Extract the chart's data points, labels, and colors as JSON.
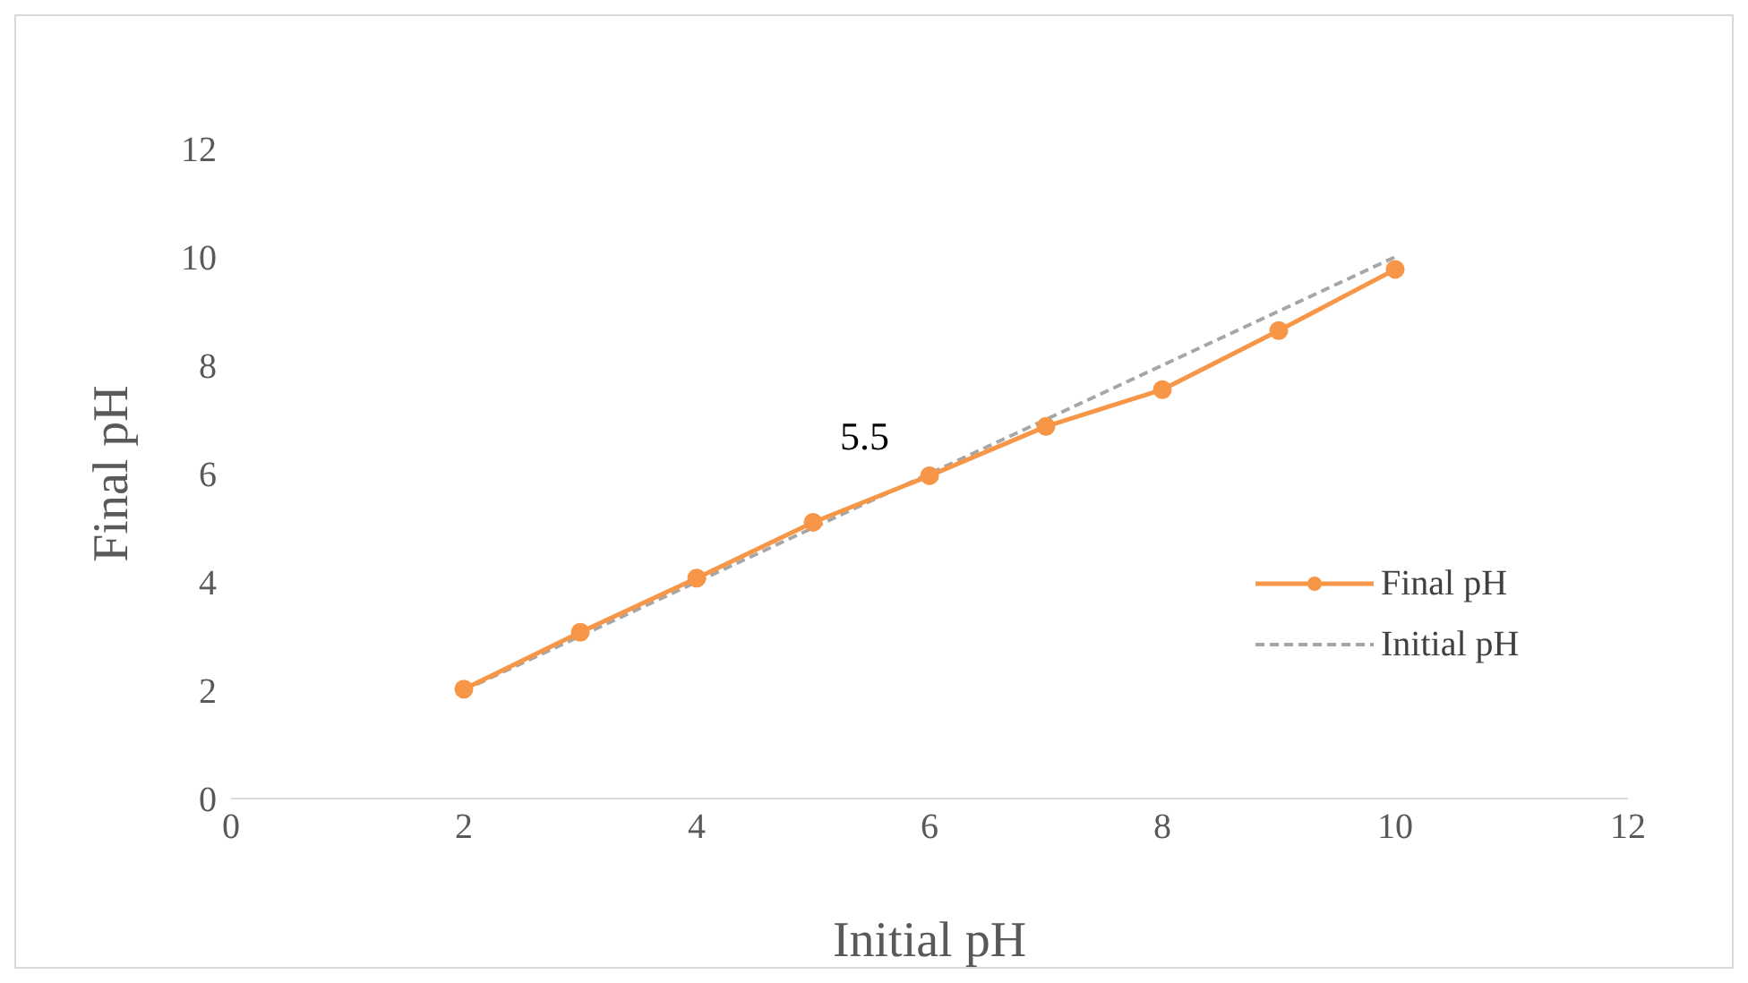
{
  "chart_data": {
    "type": "line",
    "xlabel": "Initial pH",
    "ylabel": "Final pH",
    "x": [
      2,
      3,
      4,
      5,
      6,
      7,
      8,
      9,
      10
    ],
    "xlim": [
      0,
      12
    ],
    "xticks": [
      0,
      2,
      4,
      6,
      8,
      10,
      12
    ],
    "ylim": [
      0,
      12
    ],
    "yticks": [
      0,
      2,
      4,
      6,
      8,
      10,
      12
    ],
    "grid": false,
    "legend": "right",
    "annotations": [
      "5.5"
    ],
    "series": [
      {
        "name": "Final pH",
        "color": "#f79646",
        "marker": "circle",
        "line_style": "solid",
        "values": [
          2.02,
          3.07,
          4.07,
          5.1,
          5.96,
          6.87,
          7.55,
          8.64,
          9.77
        ]
      },
      {
        "name": "Initial pH",
        "color": "#a6a6a6",
        "marker": "none",
        "line_style": "dashed",
        "values": [
          2,
          3,
          4,
          5,
          6,
          7,
          8,
          9,
          10
        ]
      }
    ]
  }
}
